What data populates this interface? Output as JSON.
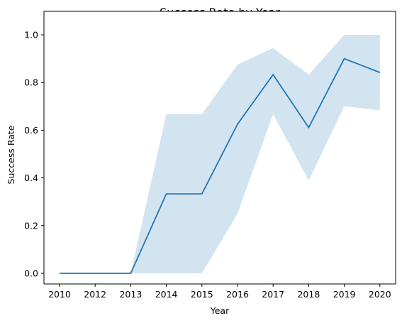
{
  "chart_data": {
    "type": "line",
    "title": "Success Rate by Year",
    "xlabel": "Year",
    "ylabel": "Success Rate",
    "x": [
      2010,
      2012,
      2013,
      2014,
      2015,
      2016,
      2017,
      2018,
      2019,
      2020
    ],
    "xticks": [
      "2010",
      "2012",
      "2013",
      "2014",
      "2015",
      "2016",
      "2017",
      "2018",
      "2019",
      "2020"
    ],
    "yticks": [
      "0.0",
      "0.2",
      "0.4",
      "0.6",
      "0.8",
      "1.0"
    ],
    "ylim": [
      -0.05,
      1.05
    ],
    "grid": false,
    "series": [
      {
        "values": [
          0,
          0,
          0,
          0.333,
          0.333,
          0.625,
          0.833,
          0.611,
          0.9,
          0.842
        ],
        "ci_lower": [
          0,
          0,
          0,
          0,
          0,
          0.25,
          0.667,
          0.389,
          0.7,
          0.684
        ],
        "ci_upper": [
          0,
          0,
          0,
          0.667,
          0.667,
          0.875,
          0.944,
          0.833,
          1.0,
          1.0
        ],
        "color": "#1f77b4",
        "band_color": "#1f77b4",
        "band_opacity": 0.2
      }
    ]
  }
}
